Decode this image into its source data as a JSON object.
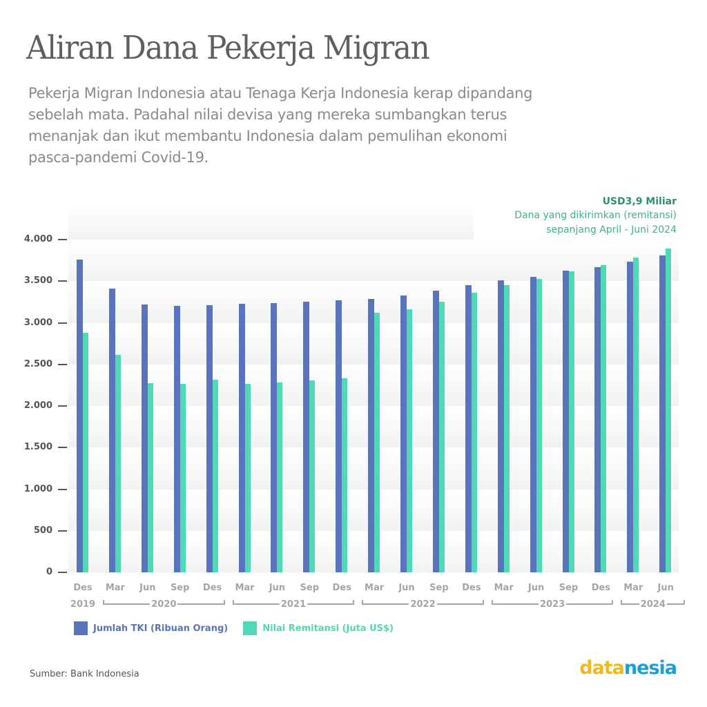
{
  "header": {
    "title": "Aliran Dana Pekerja Migran",
    "subtitle_lines": [
      "Pekerja Migran  Indonesia atau Tenaga Kerja Indonesia kerap dipandang",
      "sebelah mata. Padahal nilai devisa yang mereka sumbangkan terus",
      "menanjak dan ikut membantu Indonesia dalam pemulihan ekonomi",
      "pasca-pandemi Covid-19."
    ]
  },
  "annotation": {
    "value": "USD3,9 Miliar",
    "line1": "Dana yang dikirimkan (remitansi)",
    "line2": "sepanjang April - Juni 2024"
  },
  "colors": {
    "tki": "#5a73bd",
    "remitansi": "#4fd9b6",
    "axis_text": "#555555",
    "x_text": "#a5a5a5",
    "annotation_dark": "#2e8f73",
    "annotation_light": "#3fb08f",
    "logo_data": "#f2b81c",
    "logo_nesia": "#1f9fd1"
  },
  "chart_data": {
    "type": "bar",
    "title": "Aliran Dana Pekerja Migran",
    "xlabel": "",
    "ylabel": "",
    "ylim": [
      0,
      4000
    ],
    "yticks": [
      "0",
      "500",
      "1.000",
      "1.500",
      "2.000",
      "2.500",
      "3.000",
      "3.500",
      "4.000"
    ],
    "ytick_values": [
      0,
      500,
      1000,
      1500,
      2000,
      2500,
      3000,
      3500,
      4000
    ],
    "grid": "alternating bands",
    "legend_position": "bottom-left",
    "categories": [
      "Des 2019",
      "Mar 2020",
      "Jun 2020",
      "Sep 2020",
      "Des 2020",
      "Mar 2021",
      "Jun 2021",
      "Sep 2021",
      "Des 2021",
      "Mar 2022",
      "Jun 2022",
      "Sep 2022",
      "Des 2022",
      "Mar 2023",
      "Jun 2023",
      "Sep 2023",
      "Des 2023",
      "Mar 2024",
      "Jun 2024"
    ],
    "tick_labels": [
      "Des",
      "Mar",
      "Jun",
      "Sep",
      "Des",
      "Mar",
      "Jun",
      "Sep",
      "Des",
      "Mar",
      "Jun",
      "Sep",
      "Des",
      "Mar",
      "Jun",
      "Sep",
      "Des",
      "Mar",
      "Jun"
    ],
    "year_groups": [
      {
        "label": "2019",
        "start": 0,
        "end": 0,
        "bracket": false
      },
      {
        "label": "2020",
        "start": 1,
        "end": 4,
        "bracket": true
      },
      {
        "label": "2021",
        "start": 5,
        "end": 8,
        "bracket": true
      },
      {
        "label": "2022",
        "start": 9,
        "end": 12,
        "bracket": true
      },
      {
        "label": "2023",
        "start": 13,
        "end": 16,
        "bracket": true
      },
      {
        "label": "2024",
        "start": 17,
        "end": 18,
        "bracket": true
      }
    ],
    "series": [
      {
        "name": "Jumlah TKI (Ribuan Orang)",
        "color": "#5a73bd",
        "values": [
          3760,
          3410,
          3220,
          3200,
          3210,
          3225,
          3240,
          3255,
          3270,
          3290,
          3325,
          3385,
          3450,
          3510,
          3550,
          3625,
          3665,
          3735,
          3810
        ]
      },
      {
        "name": "Nilai Remitansi (Juta US$)",
        "color": "#4fd9b6",
        "values": [
          2880,
          2610,
          2275,
          2265,
          2315,
          2265,
          2285,
          2310,
          2335,
          3120,
          3165,
          3255,
          3360,
          3450,
          3525,
          3615,
          3690,
          3785,
          3890
        ]
      }
    ]
  },
  "legend": {
    "items": [
      {
        "label": "Jumlah TKI (Ribuan Orang)",
        "color": "#5a73bd"
      },
      {
        "label": "Nilai Remitansi (Juta US$)",
        "color": "#4fd9b6"
      }
    ]
  },
  "footer": {
    "source": "Sumber: Bank Indonesia",
    "logo_part1": "data",
    "logo_part2": "nesia"
  }
}
